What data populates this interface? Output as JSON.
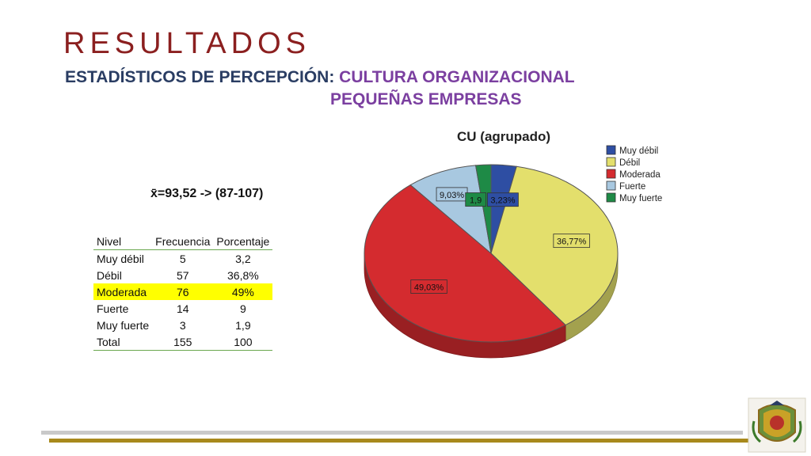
{
  "slide": {
    "title": "RESULTADOS",
    "subtitle_part1": "ESTADÍSTICOS DE PERCEPCIÓN: ",
    "subtitle_part2": "CULTURA ORGANIZACIONAL",
    "subtitle_line2": "PEQUEÑAS EMPRESAS",
    "mean_label": "x̄=93,52 -> (87-107)"
  },
  "table": {
    "headers": [
      "Nivel",
      "Frecuencia",
      "Porcentaje"
    ],
    "rows": [
      {
        "nivel": "Muy débil",
        "frecuencia": "5",
        "porcentaje": "3,2"
      },
      {
        "nivel": "Débil",
        "frecuencia": "57",
        "porcentaje": "36,8%"
      },
      {
        "nivel": "Moderada",
        "frecuencia": "76",
        "porcentaje": "49%"
      },
      {
        "nivel": "Fuerte",
        "frecuencia": "14",
        "porcentaje": "9"
      },
      {
        "nivel": "Muy fuerte",
        "frecuencia": "3",
        "porcentaje": "1,9"
      },
      {
        "nivel": "Total",
        "frecuencia": "155",
        "porcentaje": "100"
      }
    ],
    "highlight_color": "#ffff00"
  },
  "chart_data": {
    "type": "pie",
    "title": "CU (agrupado)",
    "legend_position": "top-right",
    "slices": [
      {
        "name": "Muy débil",
        "value": 3.23,
        "label": "3,23%",
        "color": "#2e4ea3"
      },
      {
        "name": "Débil",
        "value": 36.77,
        "label": "36,77%",
        "color": "#e3df6c"
      },
      {
        "name": "Moderada",
        "value": 49.03,
        "label": "49,03%",
        "color": "#d42b2f"
      },
      {
        "name": "Fuerte",
        "value": 9.03,
        "label": "9,03%",
        "color": "#a8c8e0"
      },
      {
        "name": "Muy fuerte",
        "value": 1.94,
        "label": "1,9",
        "color": "#1e8a46"
      }
    ]
  },
  "colors": {
    "title": "#8b1f1f",
    "subtitle_blue": "#2a3d63",
    "subtitle_purple": "#7b3fa0",
    "footer_gray": "#c9c9c9",
    "footer_gold": "#a8891c"
  },
  "logo": {
    "icon": "university-crest-icon"
  }
}
